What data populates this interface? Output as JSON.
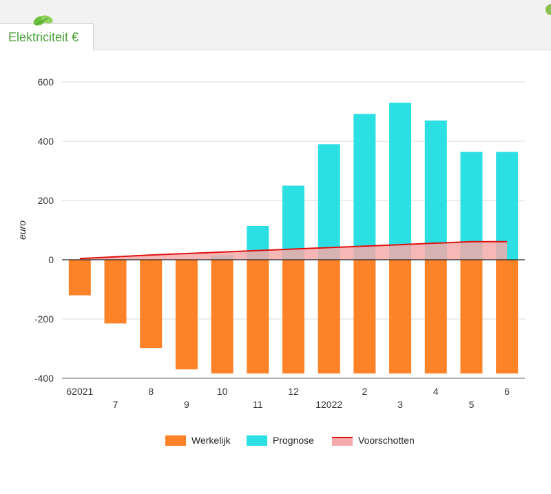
{
  "tab": {
    "label": "Elektriciteit €"
  },
  "chart_data": {
    "type": "bar",
    "ylabel": "euro",
    "ylim": [
      -400,
      600
    ],
    "yticks": [
      600,
      400,
      200,
      0,
      -200,
      -400
    ],
    "x_labels_row1": [
      "62021",
      "8",
      "10",
      "12",
      "2",
      "4",
      "6"
    ],
    "x_labels_row2": [
      "7",
      "9",
      "11",
      "12022",
      "3",
      "5"
    ],
    "series": [
      {
        "name": "Werkelijk",
        "type": "bar",
        "color": "#fd8228",
        "values": [
          -120,
          -215,
          -298,
          -370,
          -384,
          -384,
          -384,
          -384,
          -384,
          -384,
          -384,
          -384,
          -384
        ]
      },
      {
        "name": "Prognose",
        "type": "bar",
        "color": "#2bdfe3",
        "values": [
          0,
          0,
          0,
          0,
          15,
          114,
          250,
          390,
          492,
          530,
          470,
          364,
          364
        ]
      },
      {
        "name": "Voorschotten",
        "type": "area-line",
        "color": "#e01010",
        "fill": "#f4aaaa",
        "values": [
          4,
          10,
          16,
          21,
          26,
          31,
          36,
          41,
          46,
          51,
          56,
          61,
          61
        ]
      }
    ]
  },
  "legend": {
    "werkelijk": "Werkelijk",
    "prognose": "Prognose",
    "voorschotten": "Voorschotten"
  },
  "icons": {
    "tab_icon": "leaf-icon"
  },
  "colors": {
    "tab_text": "#4aa23a",
    "axis": "#333333",
    "grid": "#d9d9d9"
  }
}
